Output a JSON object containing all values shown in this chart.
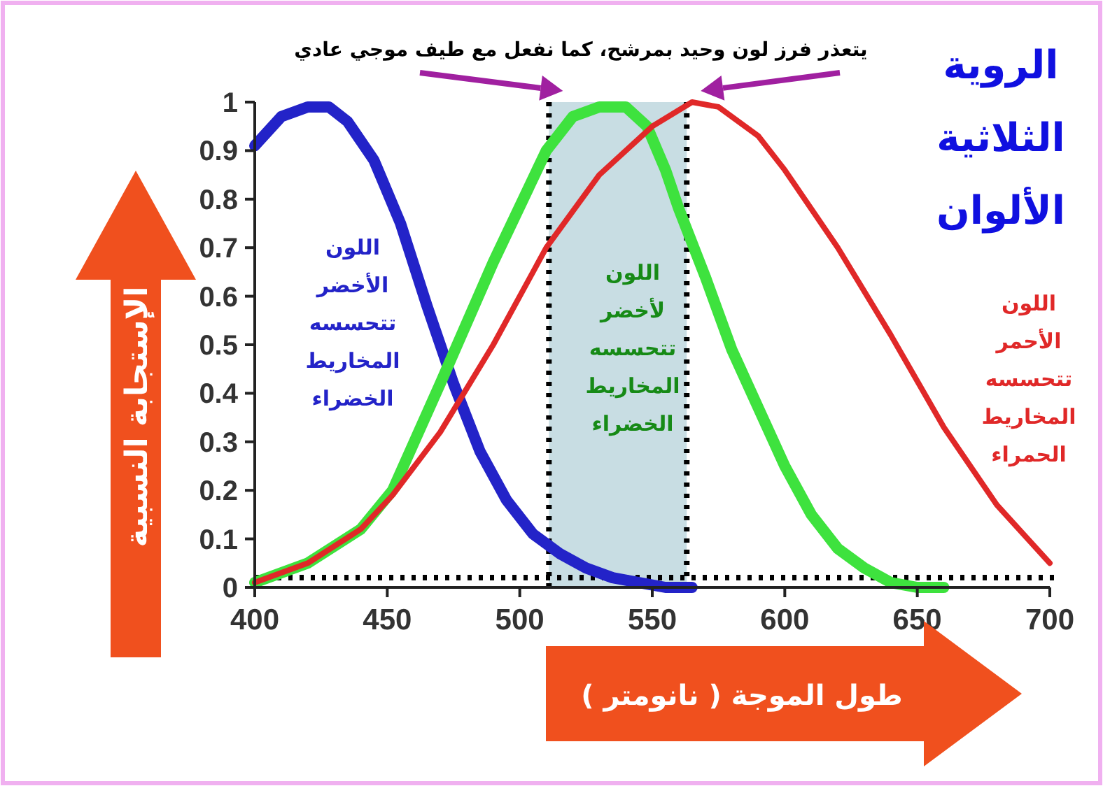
{
  "chart_data": {
    "type": "line",
    "title": "الروية\nالثلاثية\nالألوان",
    "subtitle": "يتعذر فرز لون وحيد بمرشح، كما نفعل مع طيف موجي عادي",
    "xlabel": "طول الموجة ( نانومتر )",
    "ylabel": "الإستجابة النسبية",
    "annotations": [
      "اللون\nالأخضر\nتتحسسه\nالمخاريط\nالخضراء",
      "اللون\nلأخضر\nتتحسسه\nالمخاريط\nالخضراء",
      "اللون\nالأحمر\nتتحسسه\nالمخاريط\nالحمراء"
    ],
    "series": [
      {
        "color": "#2323c8",
        "x": [
          400,
          410,
          420,
          428,
          435,
          445,
          455,
          465,
          475,
          485,
          495,
          505,
          515,
          525,
          535,
          545,
          555,
          565
        ],
        "values": [
          0.91,
          0.97,
          0.99,
          0.99,
          0.96,
          0.88,
          0.75,
          0.58,
          0.42,
          0.28,
          0.18,
          0.11,
          0.07,
          0.04,
          0.02,
          0.01,
          0,
          0
        ]
      },
      {
        "color": "#3ee23e",
        "x": [
          400,
          420,
          440,
          452,
          470,
          490,
          510,
          520,
          530,
          540,
          548,
          555,
          560,
          570,
          580,
          590,
          600,
          610,
          620,
          630,
          640,
          650,
          660
        ],
        "values": [
          0.01,
          0.05,
          0.12,
          0.2,
          0.42,
          0.67,
          0.9,
          0.97,
          0.99,
          0.99,
          0.95,
          0.86,
          0.78,
          0.64,
          0.49,
          0.37,
          0.25,
          0.15,
          0.08,
          0.04,
          0.01,
          0,
          0
        ]
      },
      {
        "color": "#e02828",
        "x": [
          400,
          420,
          440,
          452,
          470,
          490,
          510,
          530,
          550,
          565,
          575,
          590,
          600,
          620,
          640,
          660,
          680,
          700
        ],
        "values": [
          0.01,
          0.05,
          0.12,
          0.19,
          0.32,
          0.5,
          0.7,
          0.85,
          0.95,
          1.0,
          0.99,
          0.93,
          0.86,
          0.7,
          0.52,
          0.33,
          0.17,
          0.05
        ]
      }
    ],
    "xlim": [
      400,
      700
    ],
    "ylim": [
      0,
      1
    ],
    "xticks": [
      400,
      450,
      500,
      550,
      600,
      650,
      700
    ],
    "yticks": [
      0,
      0.1,
      0.2,
      0.3,
      0.4,
      0.5,
      0.6,
      0.7,
      0.8,
      0.9,
      1
    ],
    "bands": [
      {
        "axis": "x",
        "from": 511,
        "to": 563,
        "color": "#c8dde3"
      }
    ],
    "ref_lines": [
      {
        "axis": "y",
        "value": 0.02,
        "line_style": "dotted"
      },
      {
        "axis": "x",
        "value": 511,
        "line_style": "dotted"
      },
      {
        "axis": "x",
        "value": 563,
        "line_style": "dotted"
      }
    ],
    "grid": false,
    "line_style": "solid"
  }
}
